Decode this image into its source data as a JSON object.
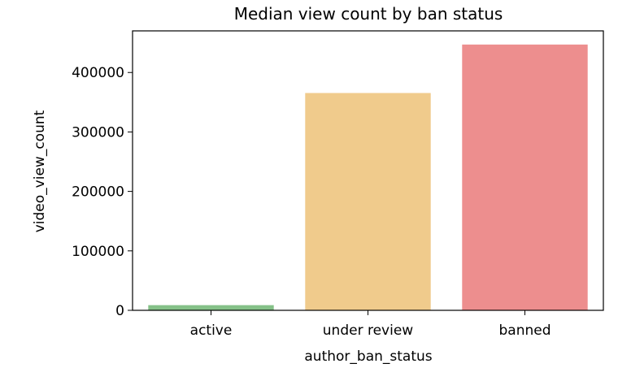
{
  "chart_data": {
    "type": "bar",
    "title": "Median view count by ban status",
    "xlabel": "author_ban_status",
    "ylabel": "video_view_count",
    "categories": [
      "active",
      "under review",
      "banned"
    ],
    "values": [
      8700,
      365500,
      447000
    ],
    "colors": [
      "#85c188",
      "#f0cb8c",
      "#ed8e8e"
    ],
    "ylim": [
      0,
      470000
    ],
    "yticks": [
      0,
      100000,
      200000,
      300000,
      400000
    ],
    "ytick_labels": [
      "0",
      "100000",
      "200000",
      "300000",
      "400000"
    ],
    "grid": false,
    "legend": false
  }
}
